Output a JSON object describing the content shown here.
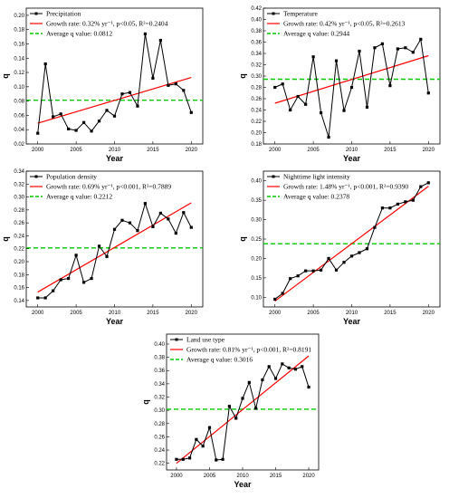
{
  "colors": {
    "series": "#000000",
    "trend": "#ff0000",
    "average": "#00cc00",
    "axis": "#000000"
  },
  "chart_data": [
    {
      "type": "line",
      "xlabel": "Year",
      "ylabel": "q",
      "xlim": [
        1998.5,
        2021.5
      ],
      "ylim": [
        0.02,
        0.21
      ],
      "xticks": [
        2000,
        2005,
        2010,
        2015,
        2020
      ],
      "yticks": [
        0.02,
        0.04,
        0.06,
        0.08,
        0.1,
        0.12,
        0.14,
        0.16,
        0.18,
        0.2
      ],
      "ytick_labels": [
        "0.02",
        "0.04",
        "0.06",
        "0.08",
        "0.10",
        "0.12",
        "0.14",
        "0.16",
        "0.18",
        "0.20"
      ],
      "legend_placement": "top-left",
      "series": [
        {
          "name": "Precipitation",
          "x": [
            2000,
            2001,
            2002,
            2003,
            2004,
            2005,
            2006,
            2007,
            2008,
            2009,
            2010,
            2011,
            2012,
            2013,
            2014,
            2015,
            2016,
            2017,
            2018,
            2019,
            2020
          ],
          "values": [
            0.035,
            0.132,
            0.058,
            0.062,
            0.041,
            0.039,
            0.05,
            0.038,
            0.052,
            0.067,
            0.059,
            0.09,
            0.092,
            0.073,
            0.174,
            0.112,
            0.165,
            0.102,
            0.104,
            0.095,
            0.064
          ]
        }
      ],
      "trend": {
        "label_prefix": "Growth rate:",
        "label_rest": "0.32% yr⁻¹, p<0.05, R²=0.2404",
        "x": [
          2000,
          2020
        ],
        "y": [
          0.049,
          0.113
        ]
      },
      "average": {
        "label": "Average q value:",
        "value_text": "0.0812",
        "y": 0.0812
      }
    },
    {
      "type": "line",
      "xlabel": "Year",
      "ylabel": "q",
      "xlim": [
        1998.5,
        2021.5
      ],
      "ylim": [
        0.18,
        0.42
      ],
      "xticks": [
        2000,
        2005,
        2010,
        2015,
        2020
      ],
      "yticks": [
        0.18,
        0.2,
        0.22,
        0.24,
        0.26,
        0.28,
        0.3,
        0.32,
        0.34,
        0.36,
        0.38,
        0.4,
        0.42
      ],
      "ytick_labels": [
        "0.18",
        "0.20",
        "0.22",
        "0.24",
        "0.26",
        "0.28",
        "0.30",
        "0.32",
        "0.34",
        "0.36",
        "0.38",
        "0.40",
        "0.42"
      ],
      "legend_placement": "top-left",
      "series": [
        {
          "name": "Temperature",
          "x": [
            2000,
            2001,
            2002,
            2003,
            2004,
            2005,
            2006,
            2007,
            2008,
            2009,
            2010,
            2011,
            2012,
            2013,
            2014,
            2015,
            2016,
            2017,
            2018,
            2019,
            2020
          ],
          "values": [
            0.28,
            0.286,
            0.24,
            0.264,
            0.25,
            0.334,
            0.235,
            0.192,
            0.327,
            0.239,
            0.28,
            0.344,
            0.245,
            0.35,
            0.357,
            0.283,
            0.348,
            0.35,
            0.342,
            0.365,
            0.27
          ]
        }
      ],
      "trend": {
        "label_prefix": "Growth rate:",
        "label_rest": "0.42% yr⁻¹, p<0.05, R²=0.2613",
        "x": [
          2000,
          2020
        ],
        "y": [
          0.252,
          0.336
        ]
      },
      "average": {
        "label": "Average q value:",
        "value_text": "0.2944",
        "y": 0.2944
      }
    },
    {
      "type": "line",
      "xlabel": "Year",
      "ylabel": "q",
      "xlim": [
        1998.5,
        2021.5
      ],
      "ylim": [
        0.13,
        0.34
      ],
      "xticks": [
        2000,
        2005,
        2010,
        2015,
        2020
      ],
      "yticks": [
        0.14,
        0.16,
        0.18,
        0.2,
        0.22,
        0.24,
        0.26,
        0.28,
        0.3,
        0.32,
        0.34
      ],
      "ytick_labels": [
        "0.14",
        "0.16",
        "0.18",
        "0.20",
        "0.22",
        "0.24",
        "0.26",
        "0.28",
        "0.30",
        "0.32",
        "0.34"
      ],
      "legend_placement": "top-left",
      "series": [
        {
          "name": "Population density",
          "x": [
            2000,
            2001,
            2002,
            2003,
            2004,
            2005,
            2006,
            2007,
            2008,
            2009,
            2010,
            2011,
            2012,
            2013,
            2014,
            2015,
            2016,
            2017,
            2018,
            2019,
            2020
          ],
          "values": [
            0.144,
            0.144,
            0.155,
            0.172,
            0.174,
            0.21,
            0.168,
            0.174,
            0.224,
            0.208,
            0.25,
            0.264,
            0.26,
            0.248,
            0.29,
            0.254,
            0.275,
            0.266,
            0.244,
            0.276,
            0.253
          ]
        }
      ],
      "trend": {
        "label_prefix": "Growth rate:",
        "label_rest": "0.69% yr⁻¹, p<0.001, R²=0.7889",
        "x": [
          2000,
          2020
        ],
        "y": [
          0.153,
          0.291
        ]
      },
      "average": {
        "label": "Average q value:",
        "value_text": "0.2212",
        "y": 0.2212
      }
    },
    {
      "type": "line",
      "xlabel": "Year",
      "ylabel": "q",
      "xlim": [
        1998.5,
        2021.5
      ],
      "ylim": [
        0.075,
        0.425
      ],
      "xticks": [
        2000,
        2005,
        2010,
        2015,
        2020
      ],
      "yticks": [
        0.1,
        0.15,
        0.2,
        0.25,
        0.3,
        0.35,
        0.4
      ],
      "ytick_labels": [
        "0.10",
        "0.15",
        "0.20",
        "0.25",
        "0.30",
        "0.35",
        "0.40"
      ],
      "legend_placement": "top-left",
      "series": [
        {
          "name": "Nighttime light intensity",
          "x": [
            2000,
            2001,
            2002,
            2003,
            2004,
            2005,
            2006,
            2007,
            2008,
            2009,
            2010,
            2011,
            2012,
            2013,
            2014,
            2015,
            2016,
            2017,
            2018,
            2019,
            2020
          ],
          "values": [
            0.095,
            0.11,
            0.148,
            0.155,
            0.168,
            0.168,
            0.17,
            0.2,
            0.17,
            0.19,
            0.206,
            0.215,
            0.225,
            0.28,
            0.33,
            0.33,
            0.34,
            0.346,
            0.35,
            0.385,
            0.395
          ]
        }
      ],
      "trend": {
        "label_prefix": "Growth rate:",
        "label_rest": "1.48% yr⁻¹, p<0.001, R²=0.9390",
        "x": [
          2000,
          2020
        ],
        "y": [
          0.09,
          0.386
        ]
      },
      "average": {
        "label": "Average q value:",
        "value_text": "0.2378",
        "y": 0.2378
      }
    },
    {
      "type": "line",
      "xlabel": "Year",
      "ylabel": "q",
      "xlim": [
        1998.5,
        2021.5
      ],
      "ylim": [
        0.21,
        0.415
      ],
      "xticks": [
        2000,
        2005,
        2010,
        2015,
        2020
      ],
      "yticks": [
        0.22,
        0.24,
        0.26,
        0.28,
        0.3,
        0.32,
        0.34,
        0.36,
        0.38,
        0.4
      ],
      "ytick_labels": [
        "0.22",
        "0.24",
        "0.26",
        "0.28",
        "0.30",
        "0.32",
        "0.34",
        "0.36",
        "0.38",
        "0.40"
      ],
      "legend_placement": "top-left",
      "series": [
        {
          "name": "Land use type",
          "x": [
            2000,
            2001,
            2002,
            2003,
            2004,
            2005,
            2006,
            2007,
            2008,
            2009,
            2010,
            2011,
            2012,
            2013,
            2014,
            2015,
            2016,
            2017,
            2018,
            2019,
            2020
          ],
          "values": [
            0.226,
            0.226,
            0.228,
            0.256,
            0.246,
            0.274,
            0.225,
            0.226,
            0.306,
            0.288,
            0.318,
            0.342,
            0.303,
            0.346,
            0.366,
            0.348,
            0.37,
            0.364,
            0.362,
            0.366,
            0.335
          ]
        }
      ],
      "trend": {
        "label_prefix": "Growth rate:",
        "label_rest": "0.81% yr⁻¹, p<0.001, R²=0.8191",
        "x": [
          2000,
          2020
        ],
        "y": [
          0.22,
          0.382
        ]
      },
      "average": {
        "label": "Average q value:",
        "value_text": "0.3016",
        "y": 0.3016
      }
    }
  ]
}
